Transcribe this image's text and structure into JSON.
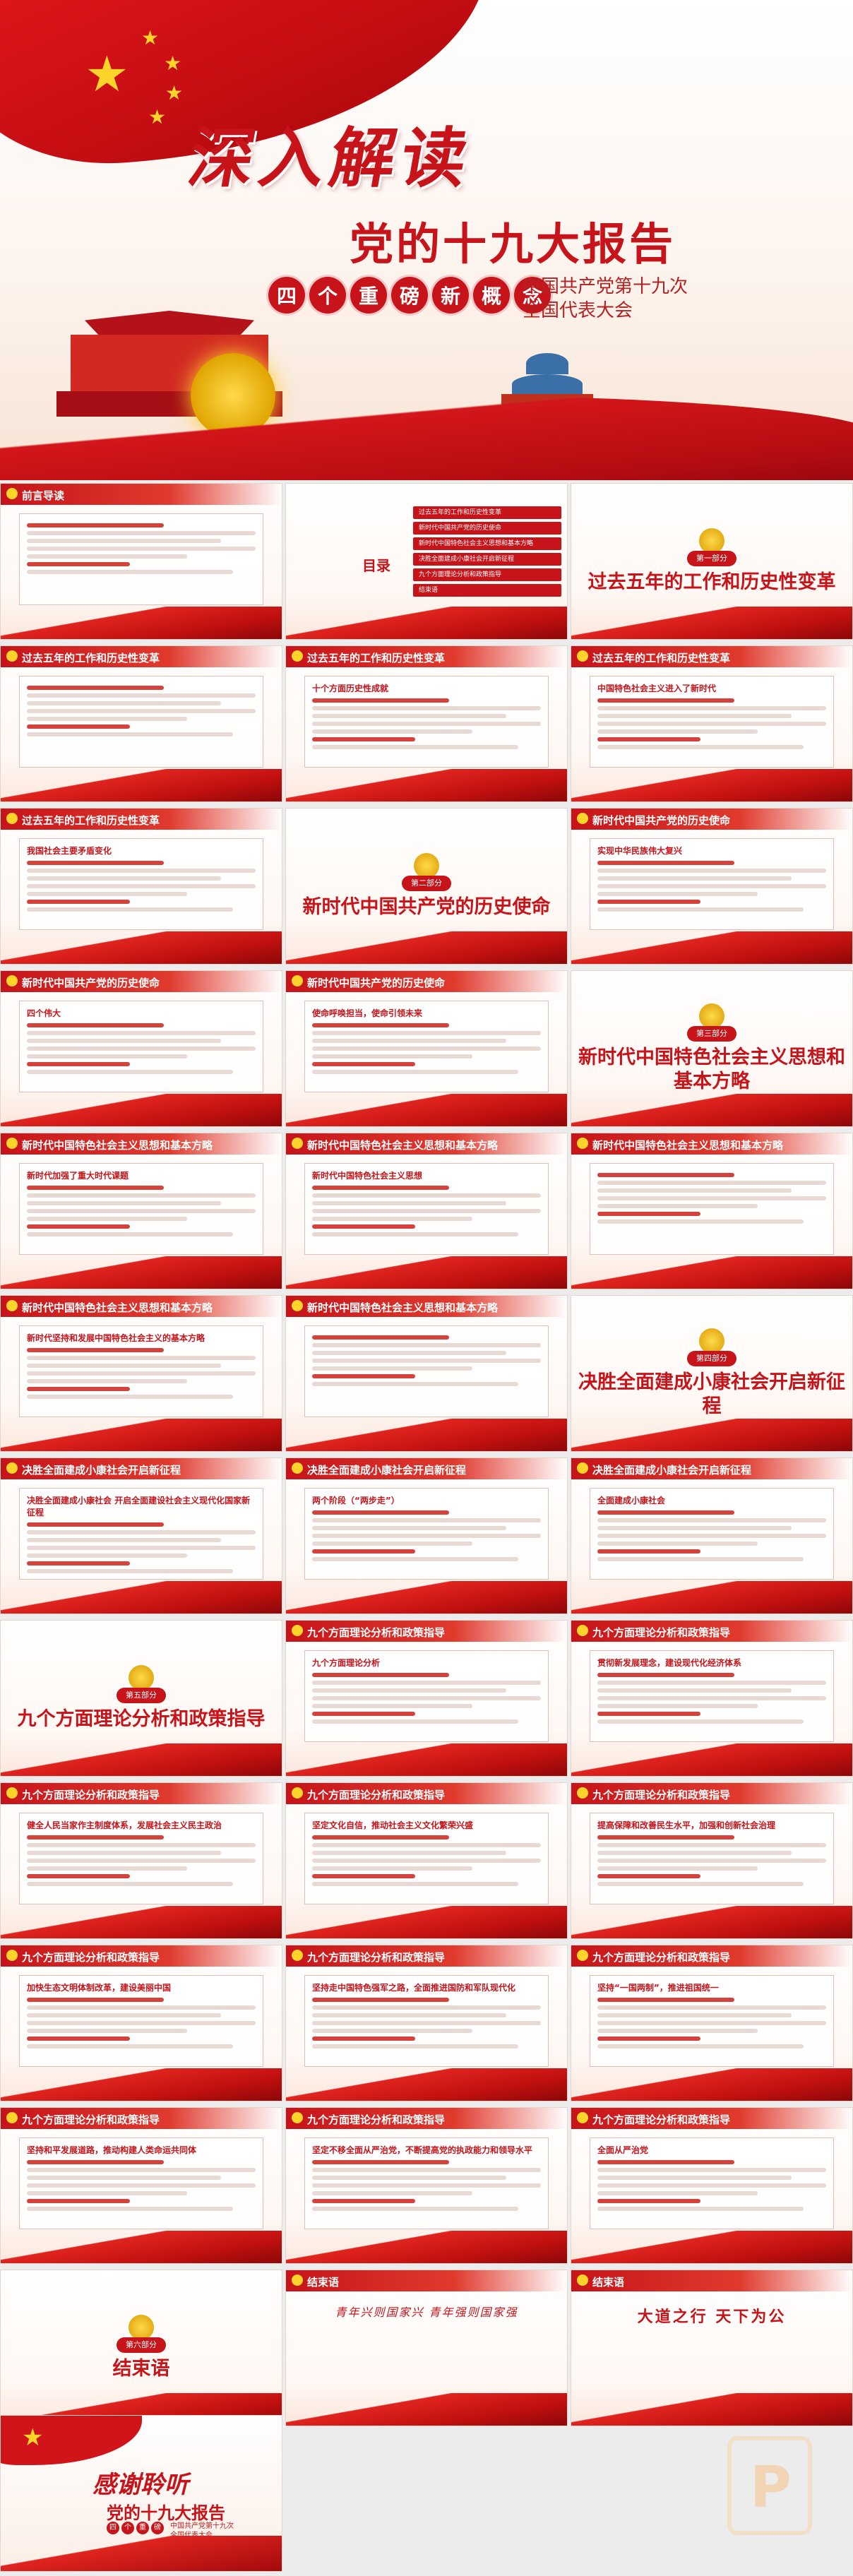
{
  "hero": {
    "title": "深入解读",
    "subtitle": "党的十九大报告",
    "concepts": [
      "四",
      "个",
      "重",
      "磅",
      "新",
      "概",
      "念"
    ],
    "org_line1": "中国共产党第十九次",
    "org_line2": "全国代表大会"
  },
  "slides": [
    {
      "type": "content",
      "title": "前言导读"
    },
    {
      "type": "toc",
      "label": "目录",
      "items": [
        "过去五年的工作和历史性变革",
        "新时代中国共产党的历史使命",
        "新时代中国特色社会主义思想和基本方略",
        "决胜全面建成小康社会开启新征程",
        "九个方面理论分析和政策指导",
        "结束语"
      ]
    },
    {
      "type": "section",
      "num": "第一部分",
      "title": "过去五年的工作和历史性变革"
    },
    {
      "type": "content",
      "title": "过去五年的工作和历史性变革"
    },
    {
      "type": "content",
      "title": "过去五年的工作和历史性变革",
      "head": "十个方面历史性成就"
    },
    {
      "type": "content",
      "title": "过去五年的工作和历史性变革",
      "head": "中国特色社会主义进入了新时代"
    },
    {
      "type": "content",
      "title": "过去五年的工作和历史性变革",
      "head": "我国社会主要矛盾变化"
    },
    {
      "type": "section",
      "num": "第二部分",
      "title": "新时代中国共产党的历史使命"
    },
    {
      "type": "content",
      "title": "新时代中国共产党的历史使命",
      "head": "实现中华民族伟大复兴"
    },
    {
      "type": "content",
      "title": "新时代中国共产党的历史使命",
      "head": "四个伟大"
    },
    {
      "type": "content",
      "title": "新时代中国共产党的历史使命",
      "head": "使命呼唤担当，使命引领未来"
    },
    {
      "type": "section",
      "num": "第三部分",
      "title": "新时代中国特色社会主义思想和基本方略"
    },
    {
      "type": "content",
      "title": "新时代中国特色社会主义思想和基本方略",
      "head": "新时代加强了重大时代课题"
    },
    {
      "type": "content",
      "title": "新时代中国特色社会主义思想和基本方略",
      "head": "新时代中国特色社会主义思想"
    },
    {
      "type": "content",
      "title": "新时代中国特色社会主义思想和基本方略"
    },
    {
      "type": "content",
      "title": "新时代中国特色社会主义思想和基本方略",
      "head": "新时代坚持和发展中国特色社会主义的基本方略"
    },
    {
      "type": "content",
      "title": "新时代中国特色社会主义思想和基本方略"
    },
    {
      "type": "section",
      "num": "第四部分",
      "title": "决胜全面建成小康社会开启新征程"
    },
    {
      "type": "content",
      "title": "决胜全面建成小康社会开启新征程",
      "head": "决胜全面建成小康社会 开启全面建设社会主义现代化国家新征程"
    },
    {
      "type": "content",
      "title": "决胜全面建成小康社会开启新征程",
      "head": "两个阶段（“两步走”）"
    },
    {
      "type": "content",
      "title": "决胜全面建成小康社会开启新征程",
      "head": "全面建成小康社会"
    },
    {
      "type": "section",
      "num": "第五部分",
      "title": "九个方面理论分析和政策指导"
    },
    {
      "type": "content",
      "title": "九个方面理论分析和政策指导",
      "head": "九个方面理论分析"
    },
    {
      "type": "content",
      "title": "九个方面理论分析和政策指导",
      "head": "贯彻新发展理念，建设现代化经济体系"
    },
    {
      "type": "content",
      "title": "九个方面理论分析和政策指导",
      "head": "健全人民当家作主制度体系，发展社会主义民主政治"
    },
    {
      "type": "content",
      "title": "九个方面理论分析和政策指导",
      "head": "坚定文化自信，推动社会主义文化繁荣兴盛"
    },
    {
      "type": "content",
      "title": "九个方面理论分析和政策指导",
      "head": "提高保障和改善民生水平，加强和创新社会治理"
    },
    {
      "type": "content",
      "title": "九个方面理论分析和政策指导",
      "head": "加快生态文明体制改革，建设美丽中国"
    },
    {
      "type": "content",
      "title": "九个方面理论分析和政策指导",
      "head": "坚持走中国特色强军之路，全面推进国防和军队现代化"
    },
    {
      "type": "content",
      "title": "九个方面理论分析和政策指导",
      "head": "坚持“一国两制”，推进祖国统一"
    },
    {
      "type": "content",
      "title": "九个方面理论分析和政策指导",
      "head": "坚持和平发展道路，推动构建人类命运共同体"
    },
    {
      "type": "content",
      "title": "九个方面理论分析和政策指导",
      "head": "坚定不移全面从严治党，不断提高党的执政能力和领导水平"
    },
    {
      "type": "content",
      "title": "九个方面理论分析和政策指导",
      "head": "全面从严治党"
    },
    {
      "type": "section",
      "num": "第六部分",
      "title": "结束语"
    },
    {
      "type": "closing",
      "title": "结束语",
      "text": "青年兴则国家兴 青年强则国家强"
    },
    {
      "type": "closing2",
      "title": "结束语",
      "text": "大道之行 天下为公"
    }
  ],
  "thanks": {
    "title": "感谢聆听",
    "subtitle": "党的十九大报告",
    "concepts": [
      "四",
      "个",
      "重",
      "磅",
      "新",
      "概",
      "念"
    ],
    "org_line1": "中国共产党第十九次",
    "org_line2": "全国代表大会"
  }
}
